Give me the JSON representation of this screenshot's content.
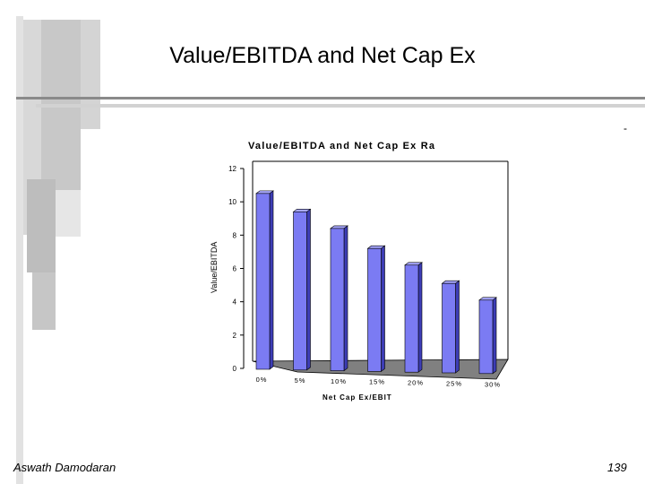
{
  "slide": {
    "title": "Value/EBITDA and Net Cap Ex",
    "author": "Aswath Damodaran",
    "page": "139",
    "corner_mark": "-"
  },
  "colors": {
    "bar_front": "#7b7bf3",
    "bar_side": "#3d3db5",
    "bar_top": "#a8a8ff",
    "floor": "#808080"
  },
  "chart_data": {
    "type": "bar",
    "title": "Value/EBITDA and Net Cap Ex Ra",
    "xlabel": "Net Cap Ex/EBIT",
    "ylabel": "Value/EBITDA",
    "categories": [
      "0%",
      "5%",
      "10%",
      "15%",
      "20%",
      "25%",
      "30%"
    ],
    "values": [
      10.5,
      9.4,
      8.4,
      7.2,
      6.2,
      5.1,
      4.1
    ],
    "ylim": [
      0,
      12
    ],
    "yticks": [
      "0",
      "2",
      "4",
      "6",
      "8",
      "10",
      "12"
    ],
    "grid": false,
    "legend": "none"
  }
}
